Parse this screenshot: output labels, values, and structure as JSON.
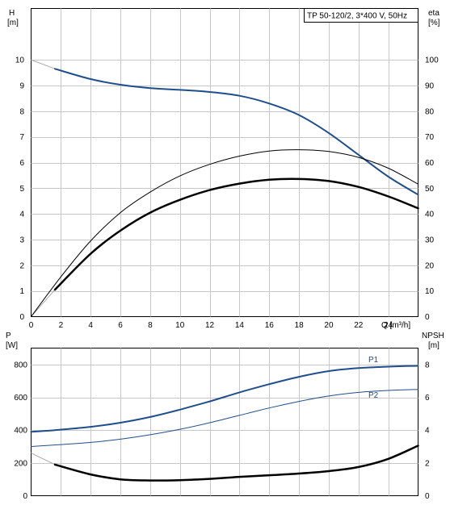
{
  "chart_data": [
    {
      "type": "line",
      "title": "TP 50-120/2, 3*400 V, 50Hz",
      "xlabel": "Q [m³/h]",
      "ylabel": "H [m]",
      "ylabel_unit": "[m]",
      "ylabel_name": "H",
      "y2label_name": "eta",
      "y2label_unit": "[%]",
      "xlim": [
        0,
        26
      ],
      "ylim": [
        0,
        12
      ],
      "y2lim": [
        0,
        120
      ],
      "xticks": [
        0,
        2,
        4,
        6,
        8,
        10,
        12,
        14,
        16,
        18,
        20,
        22,
        24
      ],
      "yticks": [
        0,
        1,
        2,
        3,
        4,
        5,
        6,
        7,
        8,
        9,
        10
      ],
      "y2ticks": [
        0,
        10,
        20,
        30,
        40,
        50,
        60,
        70,
        80,
        90,
        100
      ],
      "grid": true,
      "series": [
        {
          "key": "H_ext",
          "axis": "left",
          "color": "#999999",
          "width": 0.8,
          "x": [
            0,
            1.6
          ],
          "y": [
            10.0,
            9.65
          ]
        },
        {
          "key": "H",
          "axis": "left",
          "color": "#1f4e8c",
          "width": 2,
          "x": [
            1.6,
            4,
            6,
            8,
            10,
            12,
            14,
            16,
            18,
            20,
            22,
            24,
            26
          ],
          "y": [
            9.65,
            9.25,
            9.03,
            8.9,
            8.83,
            8.75,
            8.6,
            8.3,
            7.85,
            7.15,
            6.3,
            5.45,
            4.75
          ]
        },
        {
          "key": "eta_ext",
          "axis": "right",
          "color": "#999999",
          "width": 0.8,
          "x": [
            0,
            1.6
          ],
          "y": [
            0,
            10.5
          ]
        },
        {
          "key": "eta",
          "axis": "right",
          "color": "#000000",
          "width": 2.5,
          "x": [
            1.6,
            4,
            6,
            8,
            10,
            12,
            14,
            16,
            18,
            20,
            22,
            24,
            26
          ],
          "y": [
            10.5,
            24.5,
            33.5,
            40.5,
            45.5,
            49.3,
            51.8,
            53.3,
            53.6,
            52.8,
            50.5,
            46.8,
            42.2
          ]
        },
        {
          "key": "eta_hyd",
          "axis": "right",
          "color": "#000000",
          "width": 1,
          "x": [
            0,
            2,
            4,
            6,
            8,
            10,
            12,
            14,
            16,
            18,
            20,
            22,
            24,
            26
          ],
          "y": [
            0,
            15.5,
            29.5,
            40.5,
            48.5,
            54.8,
            59.3,
            62.5,
            64.5,
            65.0,
            64.3,
            62.0,
            57.8,
            51.6
          ]
        }
      ]
    },
    {
      "type": "line",
      "xlim": [
        0,
        26
      ],
      "ylim": [
        0,
        900
      ],
      "y2lim": [
        0,
        9
      ],
      "ylabel_name": "P",
      "ylabel_unit": "[W]",
      "y2label_name": "NPSH",
      "y2label_unit": "[m]",
      "yticks": [
        0,
        200,
        400,
        600,
        800
      ],
      "y2ticks": [
        0,
        2,
        4,
        6,
        8
      ],
      "grid": true,
      "labels": {
        "p1": "P1",
        "p2": "P2"
      },
      "series": [
        {
          "key": "P1",
          "axis": "left",
          "color": "#1f4e8c",
          "width": 2,
          "x": [
            0,
            1.6,
            4,
            6,
            8,
            10,
            12,
            14,
            16,
            18,
            20,
            22,
            24,
            26
          ],
          "y": [
            390,
            400,
            420,
            445,
            480,
            525,
            575,
            630,
            680,
            725,
            760,
            778,
            787,
            792
          ]
        },
        {
          "key": "P2",
          "axis": "left",
          "color": "#1f4e8c",
          "width": 1,
          "x": [
            0,
            2,
            4,
            6,
            8,
            10,
            12,
            14,
            16,
            18,
            20,
            22,
            24,
            26
          ],
          "y": [
            300,
            312,
            325,
            345,
            372,
            405,
            445,
            490,
            535,
            575,
            608,
            630,
            642,
            648
          ]
        },
        {
          "key": "NPSH_ext",
          "axis": "right",
          "color": "#999999",
          "width": 0.8,
          "x": [
            0,
            1.6
          ],
          "y": [
            2.6,
            1.9
          ]
        },
        {
          "key": "NPSH",
          "axis": "right",
          "color": "#000000",
          "width": 2.5,
          "x": [
            1.6,
            4,
            6,
            8,
            10,
            12,
            14,
            16,
            18,
            20,
            22,
            24,
            26
          ],
          "y": [
            1.9,
            1.3,
            1.0,
            0.93,
            0.95,
            1.03,
            1.15,
            1.25,
            1.35,
            1.5,
            1.75,
            2.25,
            3.05
          ]
        }
      ]
    }
  ]
}
